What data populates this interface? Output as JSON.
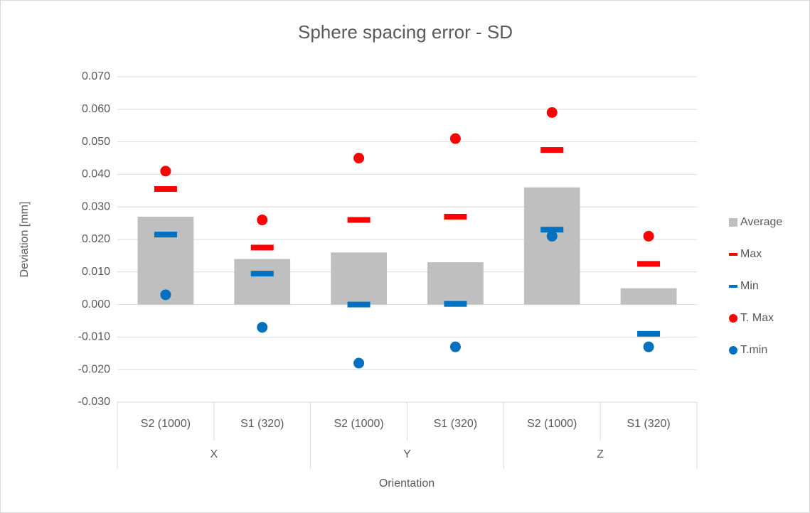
{
  "chart_data": {
    "type": "bar",
    "title": "Sphere spacing error - SD",
    "y_label": "Deviation [mm]",
    "x_label": "Orientation",
    "categories": [
      "S2 (1000)",
      "S1 (320)",
      "S2 (1000)",
      "S1 (320)",
      "S2 (1000)",
      "S1 (320)"
    ],
    "groups": [
      "X",
      "Y",
      "Z"
    ],
    "ylim": [
      -0.03,
      0.07
    ],
    "yticks": [
      {
        "value": -0.03,
        "label": "-0.030"
      },
      {
        "value": -0.02,
        "label": "-0.020"
      },
      {
        "value": -0.01,
        "label": "-0.010"
      },
      {
        "value": 0,
        "label": "0.000"
      },
      {
        "value": 0.01,
        "label": "0.010"
      },
      {
        "value": 0.02,
        "label": "0.020"
      },
      {
        "value": 0.03,
        "label": "0.030"
      },
      {
        "value": 0.04,
        "label": "0.040"
      },
      {
        "value": 0.05,
        "label": "0.050"
      },
      {
        "value": 0.06,
        "label": "0.060"
      },
      {
        "value": 0.07,
        "label": "0.070"
      }
    ],
    "grid": true,
    "legend": "right",
    "series": [
      {
        "name": "Average",
        "color": "#bfbfbf",
        "marker": "bar",
        "values": [
          0.027,
          0.014,
          0.016,
          0.013,
          0.036,
          0.005
        ]
      },
      {
        "name": "Max",
        "color": "#ff0000",
        "marker": "dash",
        "values": [
          0.0355,
          0.0175,
          0.026,
          0.027,
          0.0475,
          0.0125
        ]
      },
      {
        "name": "Min",
        "color": "#0070c0",
        "marker": "dash",
        "values": [
          0.0215,
          0.0095,
          0,
          0.0002,
          0.023,
          -0.009
        ]
      },
      {
        "name": "T. Max",
        "color": "#ff0000",
        "marker": "circle",
        "values": [
          0.041,
          0.026,
          0.045,
          0.051,
          0.059,
          0.021
        ]
      },
      {
        "name": "T.min",
        "color": "#0070c0",
        "marker": "circle",
        "values": [
          0.003,
          -0.007,
          -0.018,
          -0.013,
          0.021,
          -0.013
        ]
      }
    ]
  }
}
